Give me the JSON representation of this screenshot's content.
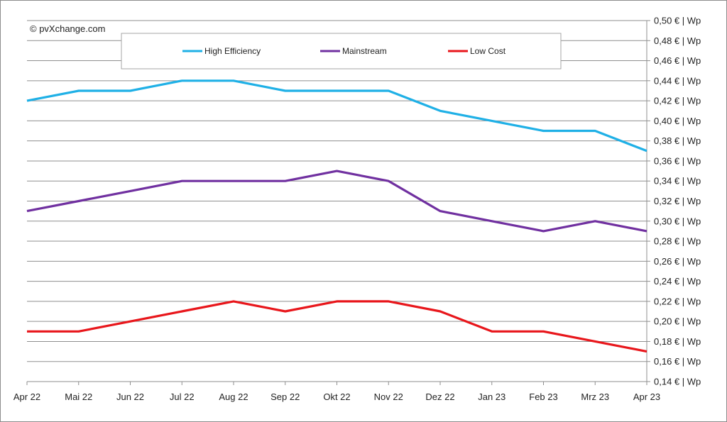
{
  "copyright": "© pvXchange.com",
  "chart_data": {
    "type": "line",
    "categories": [
      "Apr 22",
      "Mai 22",
      "Jun 22",
      "Jul 22",
      "Aug 22",
      "Sep 22",
      "Okt 22",
      "Nov 22",
      "Dez 22",
      "Jan 23",
      "Feb 23",
      "Mrz 23",
      "Apr 23"
    ],
    "ylim": [
      0.14,
      0.5
    ],
    "y_ticks": [
      0.14,
      0.16,
      0.18,
      0.2,
      0.22,
      0.24,
      0.26,
      0.28,
      0.3,
      0.32,
      0.34,
      0.36,
      0.38,
      0.4,
      0.42,
      0.44,
      0.46,
      0.48,
      0.5
    ],
    "y_tick_labels": [
      "0,14 € | Wp",
      "0,16 € | Wp",
      "0,18 € | Wp",
      "0,20 € | Wp",
      "0,22 € | Wp",
      "0,24 € | Wp",
      "0,26 € | Wp",
      "0,28 € | Wp",
      "0,30 € | Wp",
      "0,32 € | Wp",
      "0,34 € | Wp",
      "0,36 € | Wp",
      "0,38 € | Wp",
      "0,40 € | Wp",
      "0,42 € | Wp",
      "0,44 € | Wp",
      "0,46 € | Wp",
      "0,48 € | Wp",
      "0,50 € | Wp"
    ],
    "y_axis_position": "right",
    "grid": true,
    "legend_position": "top",
    "series": [
      {
        "name": "High Efficiency",
        "color": "#1fb0e6",
        "values": [
          0.42,
          0.43,
          0.43,
          0.44,
          0.44,
          0.43,
          0.43,
          0.43,
          0.41,
          0.4,
          0.39,
          0.39,
          0.37
        ]
      },
      {
        "name": "Mainstream",
        "color": "#7030a0",
        "values": [
          0.31,
          0.32,
          0.33,
          0.34,
          0.34,
          0.34,
          0.35,
          0.34,
          0.31,
          0.3,
          0.29,
          0.3,
          0.29
        ]
      },
      {
        "name": "Low Cost",
        "color": "#e8161b",
        "values": [
          0.19,
          0.19,
          0.2,
          0.21,
          0.22,
          0.21,
          0.22,
          0.22,
          0.21,
          0.19,
          0.19,
          0.18,
          0.17
        ]
      }
    ]
  }
}
